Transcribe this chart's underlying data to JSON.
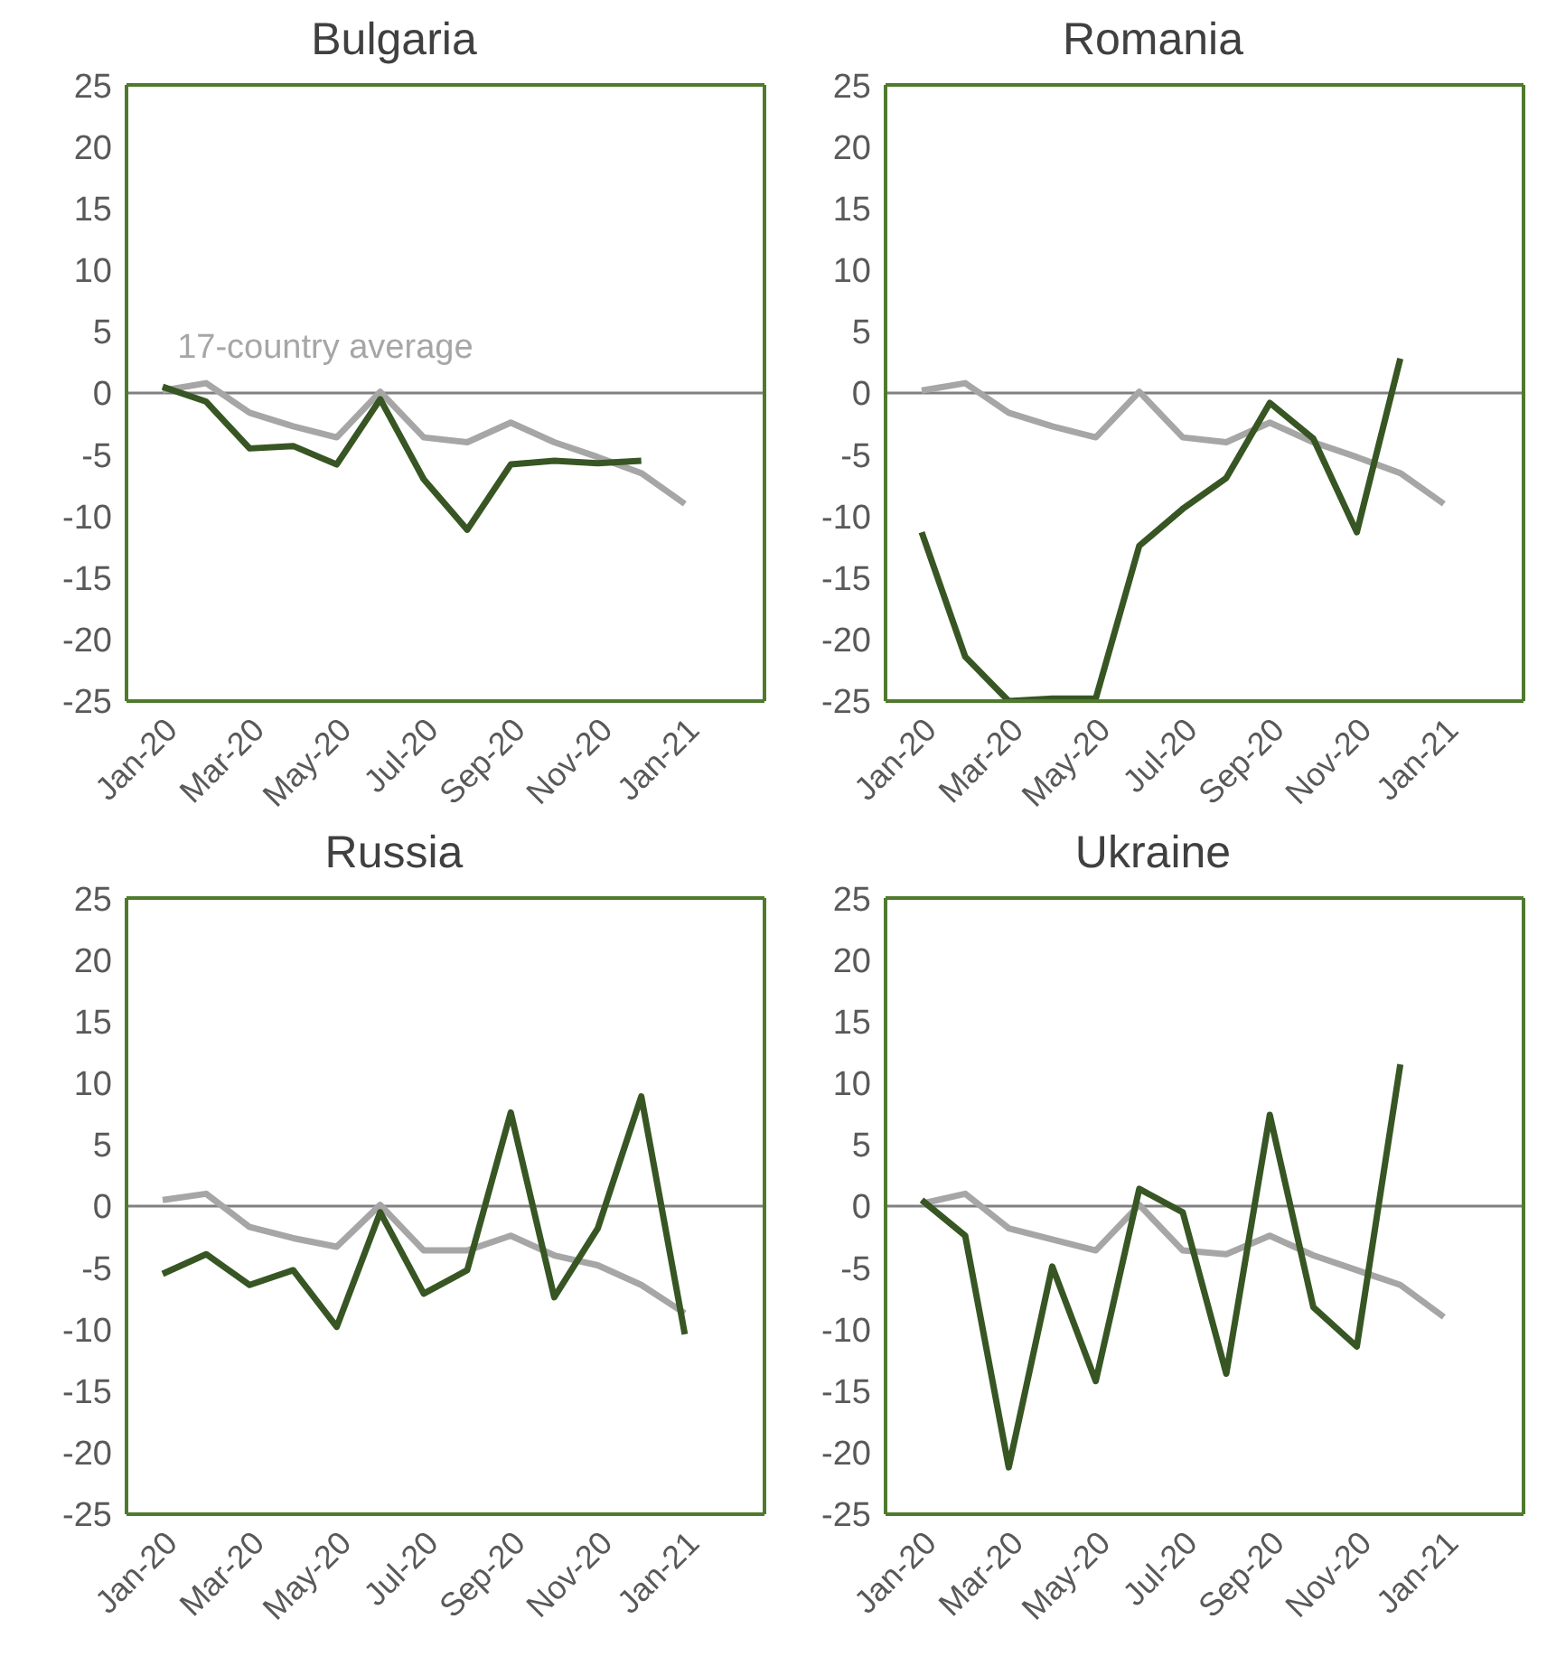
{
  "chart_data": [
    {
      "type": "line",
      "title": "Bulgaria",
      "categories": [
        "Jan-20",
        null,
        "Mar-20",
        null,
        "May-20",
        null,
        "Jul-20",
        null,
        "Sep-20",
        null,
        "Nov-20",
        null,
        "Jan-21",
        null
      ],
      "series": [
        {
          "name": "17-country average",
          "color": "#a6a6a6",
          "values": [
            0.2,
            0.8,
            -1.6,
            -2.7,
            -3.6,
            0.1,
            -3.6,
            -4.0,
            -2.4,
            -4.0,
            -5.2,
            -6.5,
            -9.0,
            null
          ]
        },
        {
          "color": "#375623",
          "values": [
            0.5,
            -0.7,
            -4.5,
            -4.3,
            -5.8,
            -0.5,
            -7.0,
            -11.1,
            -5.8,
            -5.5,
            -5.7,
            -5.5,
            null,
            null
          ]
        }
      ],
      "ylim": [
        -25,
        25
      ],
      "yticks": [
        -25,
        -20,
        -15,
        -10,
        -5,
        0,
        5,
        10,
        15,
        20,
        25
      ],
      "grid": false,
      "ref_lines": [
        {
          "axis": "y",
          "value": 0,
          "color": "#808080"
        }
      ]
    },
    {
      "type": "line",
      "title": "Romania",
      "categories": [
        "Jan-20",
        null,
        "Mar-20",
        null,
        "May-20",
        null,
        "Jul-20",
        null,
        "Sep-20",
        null,
        "Nov-20",
        null,
        "Jan-21",
        null
      ],
      "series": [
        {
          "color": "#a6a6a6",
          "values": [
            0.2,
            0.8,
            -1.6,
            -2.7,
            -3.6,
            0.1,
            -3.6,
            -4.0,
            -2.4,
            -4.0,
            -5.2,
            -6.5,
            -9.0,
            null
          ]
        },
        {
          "color": "#375623",
          "values": [
            -11.3,
            -21.4,
            -25,
            -24.8,
            -24.8,
            -12.4,
            -9.4,
            -6.9,
            -0.8,
            -3.7,
            -11.3,
            2.8,
            null,
            null
          ]
        }
      ],
      "ylim": [
        -25,
        25
      ],
      "yticks": [
        -25,
        -20,
        -15,
        -10,
        -5,
        0,
        5,
        10,
        15,
        20,
        25
      ],
      "grid": false,
      "ref_lines": [
        {
          "axis": "y",
          "value": 0,
          "color": "#808080"
        }
      ]
    },
    {
      "type": "line",
      "title": "Russia",
      "categories": [
        "Jan-20",
        null,
        "Mar-20",
        null,
        "May-20",
        null,
        "Jul-20",
        null,
        "Sep-20",
        null,
        "Nov-20",
        null,
        "Jan-21",
        null
      ],
      "series": [
        {
          "color": "#a6a6a6",
          "values": [
            0.5,
            1.0,
            -1.7,
            -2.6,
            -3.3,
            0.1,
            -3.6,
            -3.6,
            -2.4,
            -4.0,
            -4.8,
            -6.4,
            -8.7,
            null
          ]
        },
        {
          "color": "#375623",
          "values": [
            -5.5,
            -3.9,
            -6.4,
            -5.2,
            -9.8,
            -0.5,
            -7.1,
            -5.2,
            7.6,
            -7.4,
            -1.8,
            8.9,
            -10.4,
            null
          ]
        }
      ],
      "ylim": [
        -25,
        25
      ],
      "yticks": [
        -25,
        -20,
        -15,
        -10,
        -5,
        0,
        5,
        10,
        15,
        20,
        25
      ],
      "grid": false,
      "ref_lines": [
        {
          "axis": "y",
          "value": 0,
          "color": "#808080"
        }
      ]
    },
    {
      "type": "line",
      "title": "Ukraine",
      "categories": [
        "Jan-20",
        null,
        "Mar-20",
        null,
        "May-20",
        null,
        "Jul-20",
        null,
        "Sep-20",
        null,
        "Nov-20",
        null,
        "Jan-21",
        null
      ],
      "series": [
        {
          "color": "#a6a6a6",
          "values": [
            0.2,
            1.0,
            -1.8,
            -2.7,
            -3.6,
            0.1,
            -3.6,
            -3.9,
            -2.4,
            -4.0,
            -5.2,
            -6.4,
            -9.0,
            null
          ]
        },
        {
          "color": "#375623",
          "values": [
            0.5,
            -2.4,
            -21.2,
            -4.9,
            -14.2,
            1.4,
            -0.5,
            -13.6,
            7.4,
            -8.2,
            -11.4,
            11.5,
            null,
            null
          ]
        }
      ],
      "ylim": [
        -25,
        25
      ],
      "yticks": [
        -25,
        -20,
        -15,
        -10,
        -5,
        0,
        5,
        10,
        15,
        20,
        25
      ],
      "grid": false,
      "ref_lines": [
        {
          "axis": "y",
          "value": 0,
          "color": "#808080"
        }
      ]
    }
  ]
}
